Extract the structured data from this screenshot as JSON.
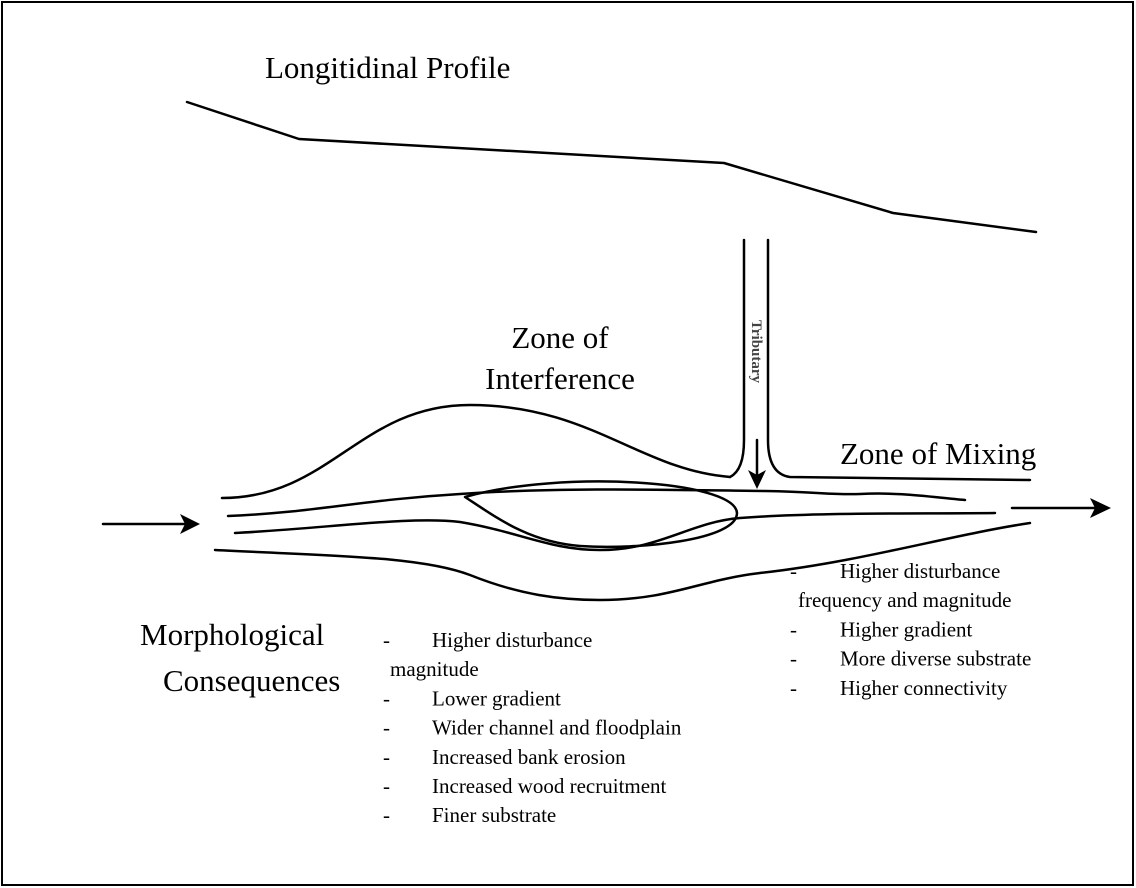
{
  "title": "Longitidinal Profile",
  "zones": {
    "interference": [
      "Zone of",
      "Interference"
    ],
    "tributary": "Tributary",
    "mixing": "Zone of Mixing"
  },
  "consequences_label": [
    "Morphological",
    "Consequences"
  ],
  "interference_consequences": [
    {
      "marker": "-",
      "lines": [
        "Higher disturbance",
        "magnitude"
      ]
    },
    {
      "marker": "-",
      "lines": [
        "Lower gradient"
      ]
    },
    {
      "marker": "-",
      "lines": [
        "Wider channel and floodplain"
      ]
    },
    {
      "marker": "-",
      "lines": [
        "Increased bank erosion"
      ]
    },
    {
      "marker": "-",
      "lines": [
        "Increased wood recruitment"
      ]
    },
    {
      "marker": "-",
      "lines": [
        "Finer substrate"
      ]
    }
  ],
  "mixing_consequences": [
    {
      "marker": "-",
      "lines": [
        "Higher disturbance",
        "frequency and magnitude"
      ]
    },
    {
      "marker": "-",
      "lines": [
        "Higher gradient"
      ]
    },
    {
      "marker": "-",
      "lines": [
        "More diverse substrate"
      ]
    },
    {
      "marker": "-",
      "lines": [
        "Higher connectivity"
      ]
    }
  ]
}
